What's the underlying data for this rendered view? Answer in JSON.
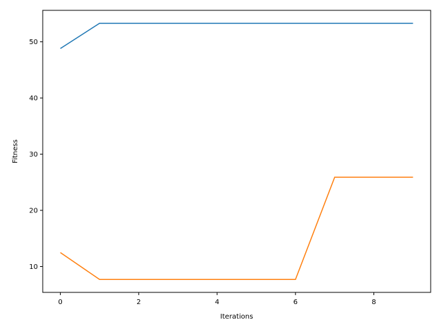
{
  "chart_data": {
    "type": "line",
    "title": "",
    "xlabel": "Iterations",
    "ylabel": "Fitness",
    "xlim": [
      -0.45,
      9.45
    ],
    "ylim": [
      5.4,
      55.6
    ],
    "x_ticks": [
      0,
      2,
      4,
      6,
      8
    ],
    "y_ticks": [
      10,
      20,
      30,
      40,
      50
    ],
    "grid": false,
    "legend": "none",
    "x": [
      0,
      1,
      2,
      3,
      4,
      5,
      6,
      7,
      8,
      9
    ],
    "series": [
      {
        "color": "#1f77b4",
        "values": [
          48.8,
          53.3,
          53.3,
          53.3,
          53.3,
          53.3,
          53.3,
          53.3,
          53.3,
          53.3
        ]
      },
      {
        "color": "#ff7f0e",
        "values": [
          12.5,
          7.7,
          7.7,
          7.7,
          7.7,
          7.7,
          7.7,
          25.9,
          25.9,
          25.9
        ]
      }
    ]
  }
}
